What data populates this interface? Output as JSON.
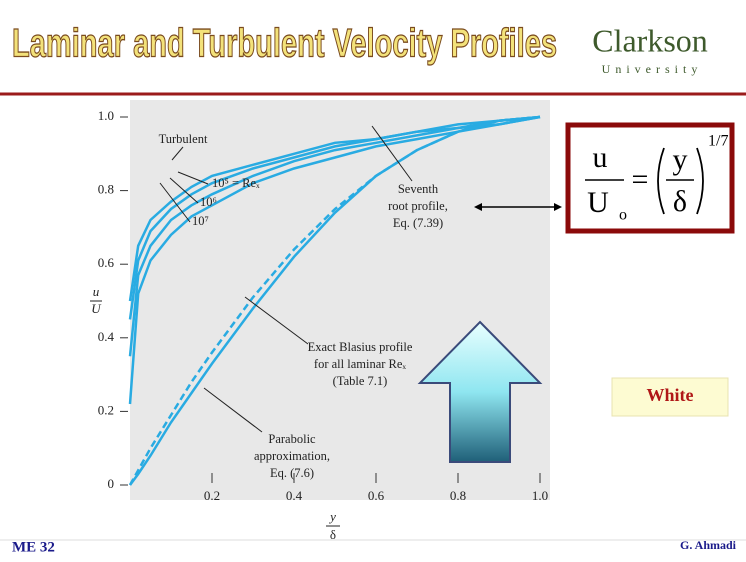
{
  "slide": {
    "title": "Laminar and Turbulent Velocity Profiles",
    "logo": {
      "name": "Clarkson",
      "subtitle": "University"
    },
    "formula": {
      "num_left": "u",
      "den_left": "U",
      "den_sub": "o",
      "equals": "=",
      "num_right": "y",
      "den_right": "δ",
      "exponent": "1/7"
    },
    "source": "White",
    "footer_left": "ME 32",
    "footer_right": "G. Ahmadi"
  },
  "chart_data": {
    "type": "line",
    "ylabel": [
      "u",
      "U"
    ],
    "xlabel": [
      "y",
      "δ"
    ],
    "x": [
      0,
      0.02,
      0.05,
      0.1,
      0.15,
      0.2,
      0.3,
      0.4,
      0.5,
      0.6,
      0.7,
      0.8,
      0.9,
      1.0
    ],
    "series": [
      {
        "color": "#29abe2",
        "dashed": false,
        "values": [
          0.22,
          0.52,
          0.61,
          0.68,
          0.73,
          0.76,
          0.82,
          0.86,
          0.89,
          0.92,
          0.94,
          0.96,
          0.98,
          1.0
        ]
      },
      {
        "color": "#29abe2",
        "dashed": false,
        "values": [
          0.35,
          0.57,
          0.65,
          0.72,
          0.76,
          0.79,
          0.84,
          0.88,
          0.91,
          0.93,
          0.95,
          0.97,
          0.98,
          1.0
        ]
      },
      {
        "color": "#29abe2",
        "dashed": false,
        "values": [
          0.45,
          0.61,
          0.69,
          0.75,
          0.79,
          0.82,
          0.86,
          0.89,
          0.92,
          0.94,
          0.96,
          0.97,
          0.99,
          1.0
        ]
      },
      {
        "color": "#29abe2",
        "dashed": false,
        "values": [
          0.5,
          0.65,
          0.72,
          0.77,
          0.81,
          0.84,
          0.87,
          0.9,
          0.93,
          0.94,
          0.96,
          0.98,
          0.99,
          1.0
        ]
      },
      {
        "color": "#29abe2",
        "dashed": false,
        "values": [
          0,
          0.03,
          0.08,
          0.17,
          0.25,
          0.33,
          0.48,
          0.62,
          0.74,
          0.84,
          0.91,
          0.96,
          0.99,
          1.0
        ]
      },
      {
        "color": "#29abe2",
        "dashed": true,
        "values": [
          0,
          0.04,
          0.1,
          0.19,
          0.28,
          0.36,
          0.51,
          0.64,
          0.75,
          0.84,
          0.91,
          0.96,
          0.99,
          1.0
        ]
      }
    ],
    "xlim": [
      0,
      1
    ],
    "ylim": [
      0,
      1
    ],
    "xticks": [
      0.2,
      0.4,
      0.6,
      0.8,
      {
        "value": 1,
        "label": "1.0"
      }
    ],
    "yticks": [
      0,
      0.2,
      0.4,
      0.6,
      0.8,
      {
        "value": 1,
        "label": "1.0"
      }
    ],
    "annotations": [
      [
        "Turbulent"
      ],
      [
        "10⁵ = Reₓ"
      ],
      [
        "10⁶"
      ],
      [
        "10⁷"
      ],
      [
        "Seventh",
        "root profile,",
        "Eq. (7.39)"
      ],
      [
        "Exact Blasius profile",
        "for all laminar Reₓ",
        "(Table 7.1)"
      ],
      [
        "Parabolic",
        "approximation,",
        "Eq. (7.6)"
      ]
    ]
  }
}
